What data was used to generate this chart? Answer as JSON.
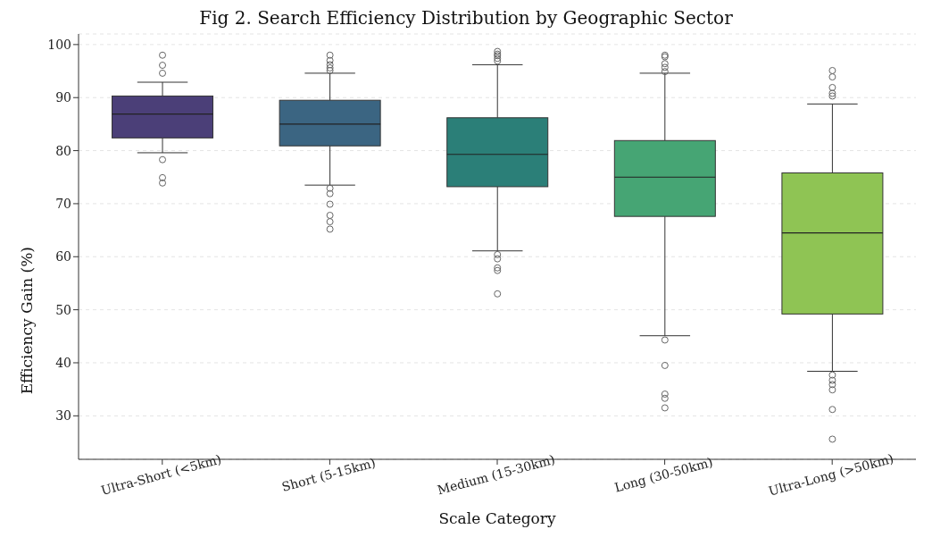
{
  "chart_data": {
    "type": "box",
    "title": "Fig 2. Search Efficiency Distribution by Geographic Sector",
    "xlabel": "Scale Category",
    "ylabel": "Efficiency Gain (%)",
    "categories": [
      "Ultra-Short (<5km)",
      "Short (5-15km)",
      "Medium (15-30km)",
      "Long (30-50km)",
      "Ultra-Long (>50km)"
    ],
    "colors": [
      "#4b3f78",
      "#3b6582",
      "#2b7f78",
      "#46a574",
      "#8fc454"
    ],
    "boxes": [
      {
        "low": 79.6,
        "q1": 82.4,
        "median": 86.9,
        "q3": 90.3,
        "high": 92.9,
        "outliers": [
          98.0,
          96.1,
          94.6,
          78.3,
          74.9,
          73.9
        ]
      },
      {
        "low": 73.5,
        "q1": 80.9,
        "median": 85.0,
        "q3": 89.5,
        "high": 94.6,
        "outliers": [
          98.0,
          97.0,
          96.2,
          95.6,
          95.1,
          72.9,
          71.9,
          69.9,
          67.8,
          66.6,
          65.2
        ]
      },
      {
        "low": 61.1,
        "q1": 73.2,
        "median": 79.3,
        "q3": 86.2,
        "high": 96.2,
        "outliers": [
          98.7,
          98.2,
          97.9,
          97.4,
          96.9,
          60.4,
          59.6,
          57.9,
          57.4,
          53.0
        ]
      },
      {
        "low": 45.1,
        "q1": 67.6,
        "median": 75.0,
        "q3": 81.9,
        "high": 94.6,
        "outliers": [
          98.0,
          97.7,
          96.4,
          95.7,
          94.9,
          44.3,
          39.5,
          34.1,
          33.3,
          31.5
        ]
      },
      {
        "low": 38.4,
        "q1": 49.2,
        "median": 64.5,
        "q3": 75.8,
        "high": 88.8,
        "outliers": [
          95.1,
          93.9,
          91.9,
          90.8,
          90.3,
          37.7,
          36.7,
          35.9,
          34.9,
          31.2,
          25.6
        ]
      }
    ],
    "ylim": [
      21.8,
      102
    ],
    "yticks": [
      30,
      40,
      50,
      60,
      70,
      80,
      90,
      100
    ],
    "grid": "y",
    "marker": "circle"
  }
}
